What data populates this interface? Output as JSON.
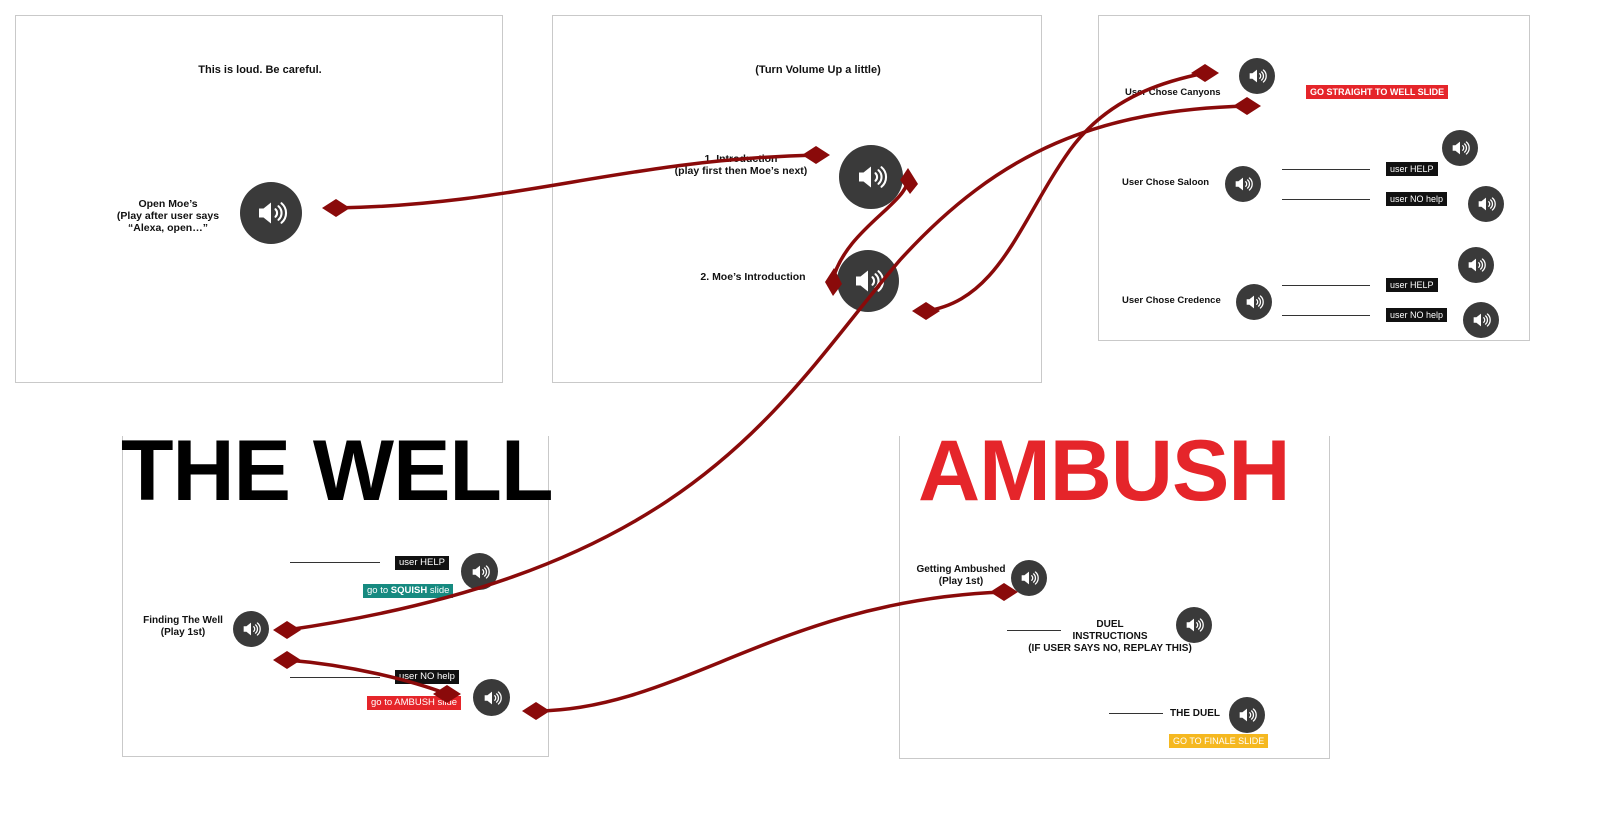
{
  "slide1": {
    "note": "This is loud. Be careful.",
    "open_moes": "Open Moe’s\n(Play after user says\n“Alexa, open…”"
  },
  "slide2": {
    "note": "(Turn Volume Up a little)",
    "intro": "1. Introduction\n(play first then Moe’s next)",
    "moes_intro": "2. Moe’s Introduction"
  },
  "slide3": {
    "canyons": "User Chose Canyons",
    "go_well": "GO STRAIGHT TO WELL SLIDE",
    "saloon": "User Chose Saloon",
    "credence": "User Chose Credence",
    "user_help": "user HELP",
    "user_no_help": "user NO help"
  },
  "well": {
    "title": "THE WELL",
    "user_help": "user HELP",
    "go_squish_prefix": "go to ",
    "go_squish_strong": "SQUISH",
    "go_squish_suffix": " slide",
    "finding": "Finding The Well\n(Play 1st)",
    "user_no_help": "user NO help",
    "go_ambush": "go to AMBUSH slide"
  },
  "ambush": {
    "title": "AMBUSH",
    "getting_ambushed": "Getting Ambushed\n(Play 1st)",
    "duel_instructions": "DUEL\nINSTRUCTIONS\n(IF USER SAYS NO, REPLAY THIS)",
    "the_duel": "THE DUEL",
    "go_finale": "GO TO FINALE SLIDE"
  },
  "colors": {
    "wire": "#8a0a0a",
    "speaker": "#3a3a3a",
    "ambush_red": "#e5252a",
    "teal": "#168a80",
    "yellow": "#f5b820"
  },
  "icons": [
    "speaker-icon"
  ]
}
